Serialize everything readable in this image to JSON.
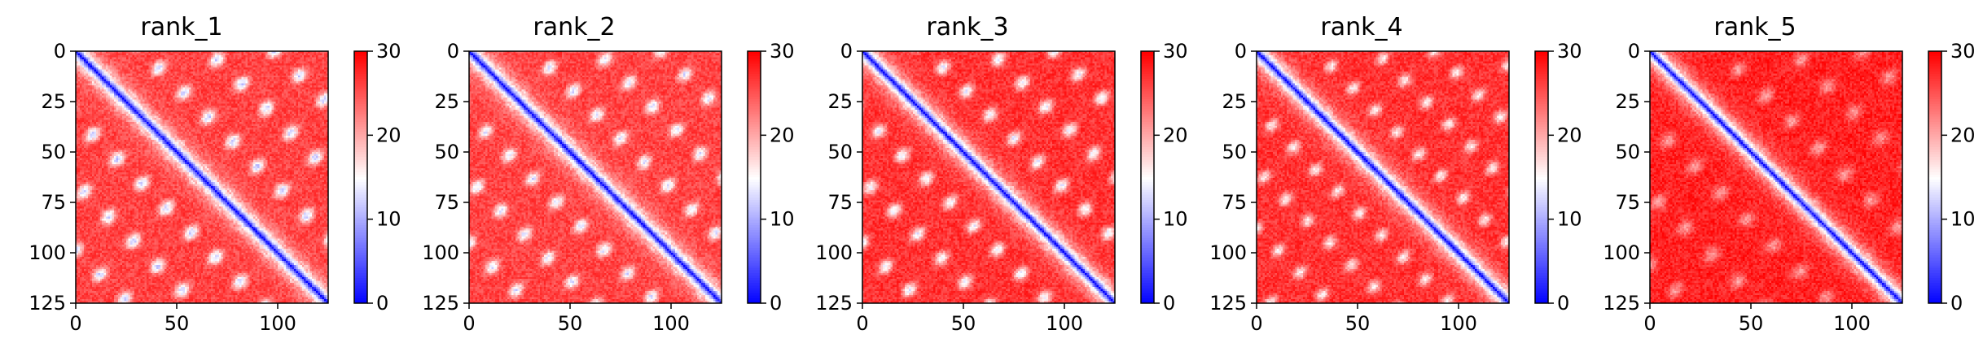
{
  "figure": {
    "panel_titles": [
      "rank_1",
      "rank_2",
      "rank_3",
      "rank_4",
      "rank_5"
    ]
  },
  "chart_data": [
    {
      "type": "heatmap",
      "title": "rank_1",
      "xlabel": "",
      "ylabel": "",
      "xlim": [
        0,
        125
      ],
      "ylim": [
        125,
        0
      ],
      "xticks": [
        0,
        50,
        100
      ],
      "yticks": [
        0,
        25,
        50,
        75,
        100,
        125
      ],
      "colorbar": {
        "colormap": "bwr",
        "range": [
          0,
          30
        ],
        "ticks": [
          0,
          10,
          20,
          30
        ]
      },
      "pattern": {
        "size": 125,
        "diagonal_value": 0,
        "off_diagonal_value": 26,
        "contact_period": 28,
        "contact_depth": 14
      }
    },
    {
      "type": "heatmap",
      "title": "rank_2",
      "xlabel": "",
      "ylabel": "",
      "xlim": [
        0,
        125
      ],
      "ylim": [
        125,
        0
      ],
      "xticks": [
        0,
        50,
        100
      ],
      "yticks": [
        0,
        25,
        50,
        75,
        100,
        125
      ],
      "colorbar": {
        "colormap": "bwr",
        "range": [
          0,
          30
        ],
        "ticks": [
          0,
          10,
          20,
          30
        ]
      },
      "pattern": {
        "size": 125,
        "diagonal_value": 0,
        "off_diagonal_value": 26,
        "contact_period": 27,
        "contact_depth": 13
      }
    },
    {
      "type": "heatmap",
      "title": "rank_3",
      "xlabel": "",
      "ylabel": "",
      "xlim": [
        0,
        125
      ],
      "ylim": [
        125,
        0
      ],
      "xticks": [
        0,
        50,
        100
      ],
      "yticks": [
        0,
        25,
        50,
        75,
        100,
        125
      ],
      "colorbar": {
        "colormap": "bwr",
        "range": [
          0,
          30
        ],
        "ticks": [
          0,
          10,
          20,
          30
        ]
      },
      "pattern": {
        "size": 125,
        "diagonal_value": 0,
        "off_diagonal_value": 27,
        "contact_period": 27,
        "contact_depth": 13
      }
    },
    {
      "type": "heatmap",
      "title": "rank_4",
      "xlabel": "",
      "ylabel": "",
      "xlim": [
        0,
        125
      ],
      "ylim": [
        125,
        0
      ],
      "xticks": [
        0,
        50,
        100
      ],
      "yticks": [
        0,
        25,
        50,
        75,
        100,
        125
      ],
      "colorbar": {
        "colormap": "bwr",
        "range": [
          0,
          30
        ],
        "ticks": [
          0,
          10,
          20,
          30
        ]
      },
      "pattern": {
        "size": 125,
        "diagonal_value": 0,
        "off_diagonal_value": 27,
        "contact_period": 25,
        "contact_depth": 11
      }
    },
    {
      "type": "heatmap",
      "title": "rank_5",
      "xlabel": "",
      "ylabel": "",
      "xlim": [
        0,
        125
      ],
      "ylim": [
        125,
        0
      ],
      "xticks": [
        0,
        50,
        100
      ],
      "yticks": [
        0,
        25,
        50,
        75,
        100,
        125
      ],
      "colorbar": {
        "colormap": "bwr",
        "range": [
          0,
          30
        ],
        "ticks": [
          0,
          10,
          20,
          30
        ]
      },
      "pattern": {
        "size": 125,
        "diagonal_value": 0,
        "off_diagonal_value": 28,
        "contact_period": 30,
        "contact_depth": 7
      }
    }
  ]
}
